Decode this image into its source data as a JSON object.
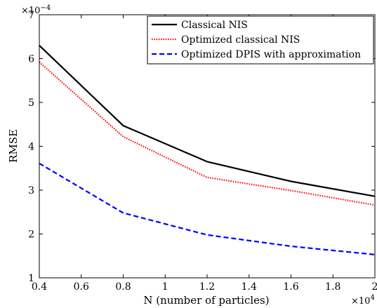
{
  "chart_data": {
    "type": "line",
    "xlabel": "N (number of particles)",
    "ylabel": "RMSE",
    "x_exponent": "×10",
    "x_exponent_power": "4",
    "y_exponent": "×10",
    "y_exponent_power": "−4",
    "x": [
      0.4,
      0.8,
      1.2,
      1.6,
      2.0
    ],
    "xlim": [
      0.4,
      2.0
    ],
    "ylim": [
      1,
      7
    ],
    "x_ticks": [
      0.4,
      0.6,
      0.8,
      1.0,
      1.2,
      1.4,
      1.6,
      1.8,
      2.0
    ],
    "x_tick_labels": [
      "0.4",
      "0.6",
      "0.8",
      "1",
      "1.2",
      "1.4",
      "1.6",
      "1.8",
      "2"
    ],
    "y_ticks": [
      1,
      2,
      3,
      4,
      5,
      6,
      7
    ],
    "y_tick_labels": [
      "1",
      "2",
      "3",
      "4",
      "5",
      "6",
      "7"
    ],
    "grid": false,
    "legend_position": "top-right",
    "series": [
      {
        "name": "Classical NIS",
        "values": [
          6.3,
          4.47,
          3.65,
          3.2,
          2.86
        ],
        "color": "#000000",
        "style": "solid"
      },
      {
        "name": "Optimized classical NIS",
        "values": [
          5.92,
          4.22,
          3.29,
          2.99,
          2.66
        ],
        "color": "#ff0000",
        "style": "dotted"
      },
      {
        "name": "Optimized DPIS with approximation",
        "values": [
          3.61,
          2.48,
          1.98,
          1.72,
          1.53
        ],
        "color": "#0000ff",
        "style": "dashed"
      }
    ]
  }
}
